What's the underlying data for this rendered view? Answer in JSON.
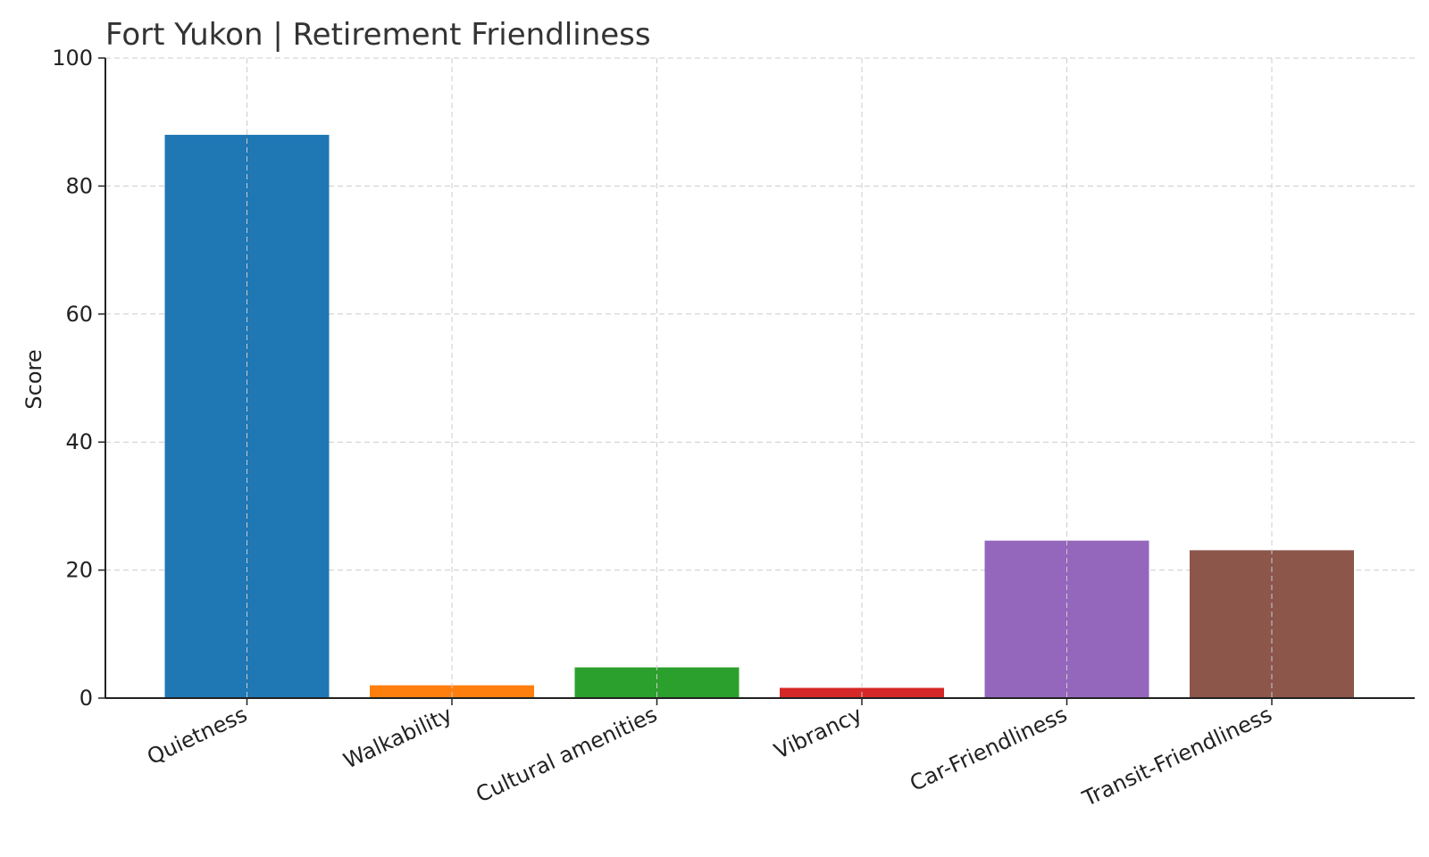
{
  "chart_data": {
    "type": "bar",
    "title": "Fort Yukon | Retirement Friendliness",
    "xlabel": "",
    "ylabel": "Score",
    "ylim": [
      0,
      100
    ],
    "yticks": [
      0,
      20,
      40,
      60,
      80,
      100
    ],
    "grid": true,
    "categories": [
      "Quietness",
      "Walkability",
      "Cultural amenities",
      "Vibrancy",
      "Car-Friendliness",
      "Transit-Friendliness"
    ],
    "values": [
      88,
      2,
      4.8,
      1.6,
      24.6,
      23.1
    ],
    "colors": [
      "#1f77b4",
      "#ff7f0e",
      "#2ca02c",
      "#d62728",
      "#9467bd",
      "#8c564b"
    ]
  }
}
